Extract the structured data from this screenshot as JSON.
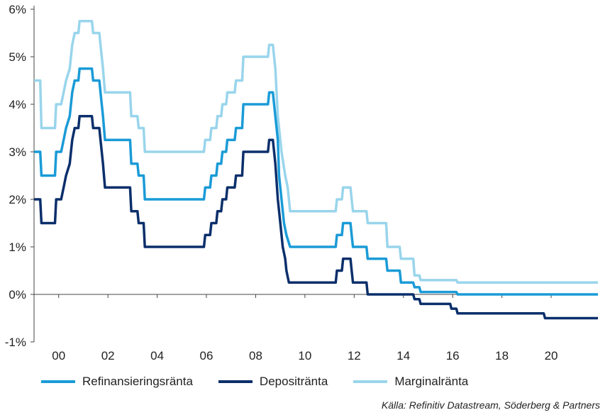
{
  "chart_data": {
    "type": "line",
    "x_ticks": [
      "00",
      "02",
      "04",
      "06",
      "08",
      "10",
      "12",
      "14",
      "16",
      "18",
      "20"
    ],
    "x_tick_values": [
      2000,
      2002,
      2004,
      2006,
      2008,
      2010,
      2012,
      2014,
      2016,
      2018,
      2020
    ],
    "y_ticks": [
      "6%",
      "5%",
      "4%",
      "3%",
      "2%",
      "1%",
      "0%",
      "-1%"
    ],
    "y_tick_values": [
      6,
      5,
      4,
      3,
      2,
      1,
      0,
      -1
    ],
    "xlim": [
      1999.0,
      2021.9
    ],
    "ylim": [
      -1,
      6
    ],
    "grid": false,
    "legend_position": "bottom",
    "series": [
      {
        "name": "Refinansieringsränta",
        "color": "#1a9bd7",
        "points": [
          [
            1999.0,
            3.0
          ],
          [
            1999.25,
            3.0
          ],
          [
            1999.3,
            2.5
          ],
          [
            1999.85,
            2.5
          ],
          [
            1999.9,
            3.0
          ],
          [
            2000.1,
            3.0
          ],
          [
            2000.2,
            3.25
          ],
          [
            2000.3,
            3.5
          ],
          [
            2000.45,
            3.75
          ],
          [
            2000.55,
            4.25
          ],
          [
            2000.65,
            4.5
          ],
          [
            2000.8,
            4.5
          ],
          [
            2000.85,
            4.75
          ],
          [
            2001.35,
            4.75
          ],
          [
            2001.4,
            4.5
          ],
          [
            2001.65,
            4.5
          ],
          [
            2001.7,
            4.25
          ],
          [
            2001.8,
            3.75
          ],
          [
            2001.88,
            3.25
          ],
          [
            2002.9,
            3.25
          ],
          [
            2002.95,
            2.75
          ],
          [
            2003.2,
            2.75
          ],
          [
            2003.25,
            2.5
          ],
          [
            2003.45,
            2.5
          ],
          [
            2003.5,
            2.0
          ],
          [
            2005.9,
            2.0
          ],
          [
            2005.95,
            2.25
          ],
          [
            2006.15,
            2.25
          ],
          [
            2006.2,
            2.5
          ],
          [
            2006.4,
            2.5
          ],
          [
            2006.45,
            2.75
          ],
          [
            2006.6,
            2.75
          ],
          [
            2006.65,
            3.0
          ],
          [
            2006.8,
            3.0
          ],
          [
            2006.85,
            3.25
          ],
          [
            2007.15,
            3.25
          ],
          [
            2007.2,
            3.5
          ],
          [
            2007.45,
            3.5
          ],
          [
            2007.5,
            4.0
          ],
          [
            2008.5,
            4.0
          ],
          [
            2008.55,
            4.25
          ],
          [
            2008.7,
            4.25
          ],
          [
            2008.8,
            3.75
          ],
          [
            2008.9,
            3.25
          ],
          [
            2008.95,
            2.5
          ],
          [
            2009.05,
            2.0
          ],
          [
            2009.15,
            1.5
          ],
          [
            2009.25,
            1.25
          ],
          [
            2009.4,
            1.0
          ],
          [
            2011.25,
            1.0
          ],
          [
            2011.3,
            1.25
          ],
          [
            2011.5,
            1.25
          ],
          [
            2011.55,
            1.5
          ],
          [
            2011.85,
            1.5
          ],
          [
            2011.9,
            1.25
          ],
          [
            2011.95,
            1.0
          ],
          [
            2012.5,
            1.0
          ],
          [
            2012.55,
            0.75
          ],
          [
            2013.3,
            0.75
          ],
          [
            2013.35,
            0.5
          ],
          [
            2013.85,
            0.5
          ],
          [
            2013.9,
            0.25
          ],
          [
            2014.4,
            0.25
          ],
          [
            2014.45,
            0.15
          ],
          [
            2014.65,
            0.15
          ],
          [
            2014.7,
            0.05
          ],
          [
            2016.15,
            0.05
          ],
          [
            2016.2,
            0.0
          ],
          [
            2021.9,
            0.0
          ]
        ]
      },
      {
        "name": "Depositränta",
        "color": "#0b2f6b",
        "points": [
          [
            1999.0,
            2.0
          ],
          [
            1999.25,
            2.0
          ],
          [
            1999.3,
            1.5
          ],
          [
            1999.85,
            1.5
          ],
          [
            1999.9,
            2.0
          ],
          [
            2000.1,
            2.0
          ],
          [
            2000.2,
            2.25
          ],
          [
            2000.3,
            2.5
          ],
          [
            2000.45,
            2.75
          ],
          [
            2000.55,
            3.25
          ],
          [
            2000.65,
            3.5
          ],
          [
            2000.8,
            3.5
          ],
          [
            2000.85,
            3.75
          ],
          [
            2001.35,
            3.75
          ],
          [
            2001.4,
            3.5
          ],
          [
            2001.65,
            3.5
          ],
          [
            2001.7,
            3.25
          ],
          [
            2001.8,
            2.75
          ],
          [
            2001.88,
            2.25
          ],
          [
            2002.9,
            2.25
          ],
          [
            2002.95,
            1.75
          ],
          [
            2003.2,
            1.75
          ],
          [
            2003.25,
            1.5
          ],
          [
            2003.45,
            1.5
          ],
          [
            2003.5,
            1.0
          ],
          [
            2005.9,
            1.0
          ],
          [
            2005.95,
            1.25
          ],
          [
            2006.15,
            1.25
          ],
          [
            2006.2,
            1.5
          ],
          [
            2006.4,
            1.5
          ],
          [
            2006.45,
            1.75
          ],
          [
            2006.6,
            1.75
          ],
          [
            2006.65,
            2.0
          ],
          [
            2006.8,
            2.0
          ],
          [
            2006.85,
            2.25
          ],
          [
            2007.15,
            2.25
          ],
          [
            2007.2,
            2.5
          ],
          [
            2007.45,
            2.5
          ],
          [
            2007.5,
            3.0
          ],
          [
            2008.5,
            3.0
          ],
          [
            2008.55,
            3.25
          ],
          [
            2008.7,
            3.25
          ],
          [
            2008.8,
            2.75
          ],
          [
            2008.9,
            2.0
          ],
          [
            2009.0,
            1.5
          ],
          [
            2009.1,
            1.0
          ],
          [
            2009.2,
            0.75
          ],
          [
            2009.25,
            0.5
          ],
          [
            2009.35,
            0.25
          ],
          [
            2011.25,
            0.25
          ],
          [
            2011.3,
            0.5
          ],
          [
            2011.5,
            0.5
          ],
          [
            2011.55,
            0.75
          ],
          [
            2011.85,
            0.75
          ],
          [
            2011.9,
            0.5
          ],
          [
            2011.95,
            0.25
          ],
          [
            2012.5,
            0.25
          ],
          [
            2012.55,
            0.0
          ],
          [
            2014.4,
            0.0
          ],
          [
            2014.45,
            -0.1
          ],
          [
            2014.65,
            -0.1
          ],
          [
            2014.7,
            -0.2
          ],
          [
            2015.9,
            -0.2
          ],
          [
            2015.95,
            -0.3
          ],
          [
            2016.15,
            -0.3
          ],
          [
            2016.2,
            -0.4
          ],
          [
            2019.7,
            -0.4
          ],
          [
            2019.75,
            -0.5
          ],
          [
            2021.9,
            -0.5
          ]
        ]
      },
      {
        "name": "Marginalränta",
        "color": "#99d5ec",
        "points": [
          [
            1999.0,
            4.5
          ],
          [
            1999.25,
            4.5
          ],
          [
            1999.3,
            3.5
          ],
          [
            1999.85,
            3.5
          ],
          [
            1999.9,
            4.0
          ],
          [
            2000.1,
            4.0
          ],
          [
            2000.2,
            4.25
          ],
          [
            2000.3,
            4.5
          ],
          [
            2000.45,
            4.75
          ],
          [
            2000.55,
            5.25
          ],
          [
            2000.65,
            5.5
          ],
          [
            2000.8,
            5.5
          ],
          [
            2000.85,
            5.75
          ],
          [
            2001.35,
            5.75
          ],
          [
            2001.4,
            5.5
          ],
          [
            2001.65,
            5.5
          ],
          [
            2001.7,
            5.25
          ],
          [
            2001.8,
            4.75
          ],
          [
            2001.88,
            4.25
          ],
          [
            2002.9,
            4.25
          ],
          [
            2002.95,
            3.75
          ],
          [
            2003.2,
            3.75
          ],
          [
            2003.25,
            3.5
          ],
          [
            2003.45,
            3.5
          ],
          [
            2003.5,
            3.0
          ],
          [
            2005.9,
            3.0
          ],
          [
            2005.95,
            3.25
          ],
          [
            2006.15,
            3.25
          ],
          [
            2006.2,
            3.5
          ],
          [
            2006.4,
            3.5
          ],
          [
            2006.45,
            3.75
          ],
          [
            2006.6,
            3.75
          ],
          [
            2006.65,
            4.0
          ],
          [
            2006.8,
            4.0
          ],
          [
            2006.85,
            4.25
          ],
          [
            2007.15,
            4.25
          ],
          [
            2007.2,
            4.5
          ],
          [
            2007.45,
            4.5
          ],
          [
            2007.5,
            5.0
          ],
          [
            2008.5,
            5.0
          ],
          [
            2008.55,
            5.25
          ],
          [
            2008.7,
            5.25
          ],
          [
            2008.8,
            4.75
          ],
          [
            2008.9,
            3.75
          ],
          [
            2009.05,
            3.0
          ],
          [
            2009.2,
            2.5
          ],
          [
            2009.3,
            2.25
          ],
          [
            2009.4,
            1.75
          ],
          [
            2011.25,
            1.75
          ],
          [
            2011.3,
            2.0
          ],
          [
            2011.5,
            2.0
          ],
          [
            2011.55,
            2.25
          ],
          [
            2011.85,
            2.25
          ],
          [
            2011.9,
            2.0
          ],
          [
            2011.95,
            1.75
          ],
          [
            2012.5,
            1.75
          ],
          [
            2012.55,
            1.5
          ],
          [
            2013.3,
            1.5
          ],
          [
            2013.35,
            1.0
          ],
          [
            2013.85,
            1.0
          ],
          [
            2013.9,
            0.75
          ],
          [
            2014.4,
            0.75
          ],
          [
            2014.45,
            0.4
          ],
          [
            2014.65,
            0.4
          ],
          [
            2014.7,
            0.3
          ],
          [
            2016.15,
            0.3
          ],
          [
            2016.2,
            0.25
          ],
          [
            2021.9,
            0.25
          ]
        ]
      }
    ]
  },
  "source_text": "Källa: Refinitiv Datastream, Söderberg & Partners"
}
